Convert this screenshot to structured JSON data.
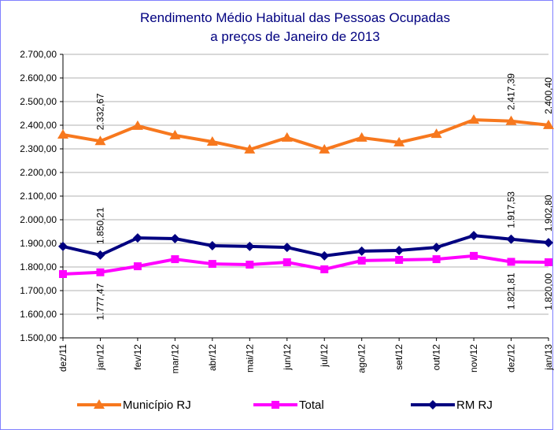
{
  "chart_data": {
    "type": "line",
    "title": "Rendimento Médio Habitual das Pessoas Ocupadas",
    "subtitle": "a preços de Janeiro de 2013",
    "categories": [
      "dez/11",
      "jan/12",
      "fev/12",
      "mar/12",
      "abr/12",
      "mai/12",
      "jun/12",
      "jul/12",
      "ago/12",
      "set/12",
      "out/12",
      "nov/12",
      "dez/12",
      "jan/13"
    ],
    "series": [
      {
        "name": "Município RJ",
        "color": "#f7781e",
        "marker": "triangle",
        "values": [
          2360,
          2332.67,
          2397,
          2357,
          2330,
          2297,
          2347,
          2297,
          2347,
          2327,
          2363,
          2423,
          2417.39,
          2400.4
        ],
        "value_labels": [
          null,
          "2.332,67",
          null,
          null,
          null,
          null,
          null,
          null,
          null,
          null,
          null,
          null,
          "2.417,39",
          "2.400,40"
        ]
      },
      {
        "name": "Total",
        "color": "#ff00ff",
        "marker": "square",
        "values": [
          1770,
          1777.47,
          1803,
          1833,
          1813,
          1810,
          1820,
          1790,
          1827,
          1830,
          1833,
          1847,
          1821.81,
          1820.0
        ],
        "value_labels": [
          null,
          "1.777,47",
          null,
          null,
          null,
          null,
          null,
          null,
          null,
          null,
          null,
          null,
          "1.821,81",
          "1.820,00"
        ]
      },
      {
        "name": "RM RJ",
        "color": "#000080",
        "marker": "diamond",
        "values": [
          1887,
          1850.21,
          1923,
          1920,
          1890,
          1887,
          1883,
          1847,
          1867,
          1870,
          1883,
          1933,
          1917.53,
          1902.8
        ],
        "value_labels": [
          null,
          "1.850,21",
          null,
          null,
          null,
          null,
          null,
          null,
          null,
          null,
          null,
          null,
          "1.917,53",
          "1.902,80"
        ]
      }
    ],
    "ylim": [
      1500,
      2700
    ],
    "yticks": [
      {
        "value": 1500,
        "label": "1.500,00"
      },
      {
        "value": 1600,
        "label": "1.600,00"
      },
      {
        "value": 1700,
        "label": "1.700,00"
      },
      {
        "value": 1800,
        "label": "1.800,00"
      },
      {
        "value": 1900,
        "label": "1.900,00"
      },
      {
        "value": 2000,
        "label": "2.000,00"
      },
      {
        "value": 2100,
        "label": "2.100,00"
      },
      {
        "value": 2200,
        "label": "2.200,00"
      },
      {
        "value": 2300,
        "label": "2.300,00"
      },
      {
        "value": 2400,
        "label": "2.400,00"
      },
      {
        "value": 2500,
        "label": "2.500,00"
      },
      {
        "value": 2600,
        "label": "2.600,00"
      },
      {
        "value": 2700,
        "label": "2.700,00"
      }
    ],
    "grid": true,
    "legend": "bottom"
  }
}
